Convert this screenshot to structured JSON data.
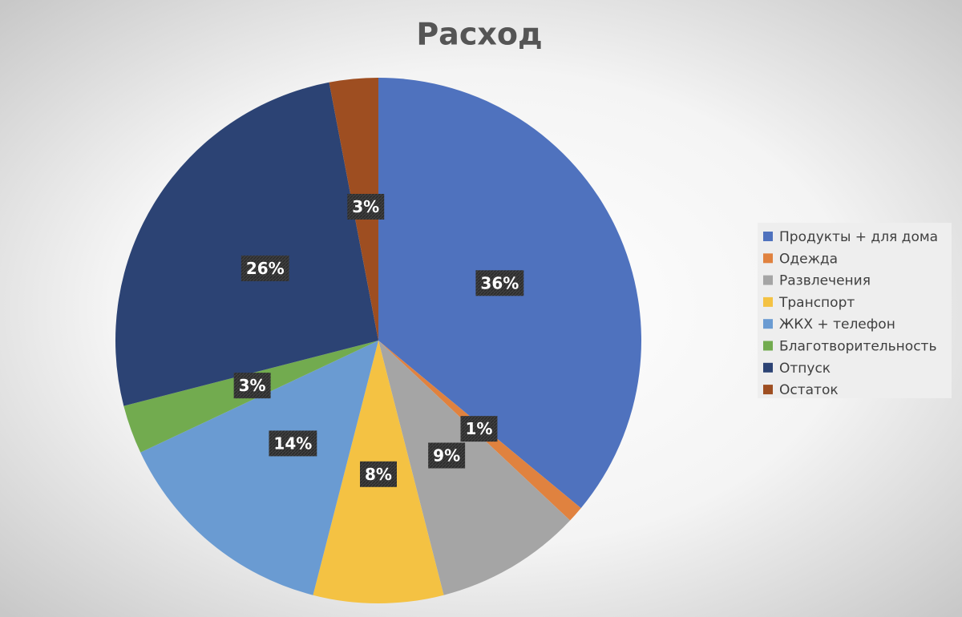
{
  "chart_data": {
    "type": "pie",
    "title": "Расход",
    "categories": [
      "Продукты + для дома",
      "Одежда",
      "Развлечения",
      "Транспорт",
      "ЖКХ + телефон",
      "Благотворительность",
      "Отпуск",
      "Остаток"
    ],
    "values": [
      36,
      1,
      9,
      8,
      14,
      3,
      26,
      3
    ],
    "value_labels": [
      "36%",
      "1%",
      "9%",
      "8%",
      "14%",
      "3%",
      "26%",
      "3%"
    ],
    "colors": [
      "#4f72be",
      "#e0823f",
      "#a5a5a5",
      "#f4c243",
      "#6a9bd2",
      "#72ab4f",
      "#2c4374",
      "#9e4e21"
    ],
    "legend": "right"
  }
}
